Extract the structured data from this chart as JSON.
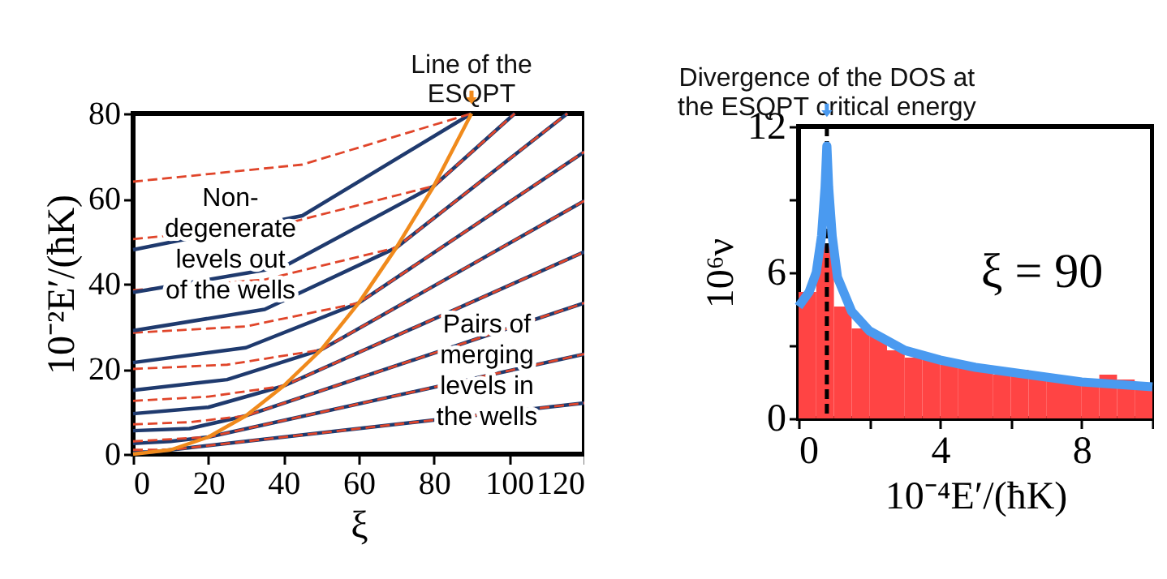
{
  "chart_data": [
    {
      "type": "line",
      "xlabel": "ξ",
      "ylabel": "10⁻²E′/(ħK)",
      "xlim": [
        0,
        120
      ],
      "ylim": [
        0,
        80
      ],
      "xticks": [
        0,
        20,
        40,
        60,
        80,
        100,
        120
      ],
      "yticks": [
        0,
        20,
        40,
        60,
        80
      ],
      "annotations": [
        {
          "text": "Line of the\nESQPT",
          "x": 90,
          "y": 80
        },
        "Non-\ndegenerate\nlevels out\nof the wells",
        "Pairs of\nmerging\nlevels in\nthe wells"
      ],
      "series": [
        {
          "color": "#1f3a6e",
          "line_style": "solid",
          "x": [
            0,
            5,
            10,
            120
          ],
          "values": [
            0.5,
            0.5,
            1,
            12
          ]
        },
        {
          "color": "#e0452a",
          "line_style": "dashed",
          "x": [
            0,
            5,
            10,
            120
          ],
          "values": [
            1,
            1,
            1,
            12
          ]
        },
        {
          "color": "#1f3a6e",
          "line_style": "solid",
          "x": [
            0,
            10,
            20,
            120
          ],
          "values": [
            2.5,
            3,
            4,
            23.5
          ]
        },
        {
          "color": "#e0452a",
          "line_style": "dashed",
          "x": [
            0,
            10,
            20,
            120
          ],
          "values": [
            3,
            3.5,
            4,
            23.5
          ]
        },
        {
          "color": "#1f3a6e",
          "line_style": "solid",
          "x": [
            0,
            15,
            30,
            120
          ],
          "values": [
            5.5,
            6,
            9,
            35.5
          ]
        },
        {
          "color": "#e0452a",
          "line_style": "dashed",
          "x": [
            0,
            15,
            30,
            120
          ],
          "values": [
            7,
            7.5,
            9,
            35.5
          ]
        },
        {
          "color": "#1f3a6e",
          "line_style": "solid",
          "x": [
            0,
            20,
            40,
            120
          ],
          "values": [
            9.5,
            11,
            16,
            47.5
          ]
        },
        {
          "color": "#e0452a",
          "line_style": "dashed",
          "x": [
            0,
            20,
            40,
            120
          ],
          "values": [
            12.5,
            13.5,
            16,
            47.5
          ]
        },
        {
          "color": "#1f3a6e",
          "line_style": "solid",
          "x": [
            0,
            25,
            50,
            120
          ],
          "values": [
            15,
            17.5,
            24.5,
            59.5
          ]
        },
        {
          "color": "#e0452a",
          "line_style": "dashed",
          "x": [
            0,
            25,
            50,
            120
          ],
          "values": [
            20,
            21,
            24.5,
            59.5
          ]
        },
        {
          "color": "#1f3a6e",
          "line_style": "solid",
          "x": [
            0,
            30,
            60,
            120
          ],
          "values": [
            21.5,
            25,
            35.5,
            71
          ]
        },
        {
          "color": "#e0452a",
          "line_style": "dashed",
          "x": [
            0,
            30,
            60,
            120
          ],
          "values": [
            28.5,
            30,
            35.5,
            71
          ]
        },
        {
          "color": "#1f3a6e",
          "line_style": "solid",
          "x": [
            0,
            35,
            70,
            115.5
          ],
          "values": [
            29,
            34,
            48.5,
            80
          ]
        },
        {
          "color": "#e0452a",
          "line_style": "dashed",
          "x": [
            0,
            35,
            70,
            115.5
          ],
          "values": [
            38.5,
            41,
            48.5,
            80
          ]
        },
        {
          "color": "#1f3a6e",
          "line_style": "solid",
          "x": [
            0,
            40,
            80,
            101.5
          ],
          "values": [
            38,
            44,
            63,
            80
          ]
        },
        {
          "color": "#e0452a",
          "line_style": "dashed",
          "x": [
            0,
            40,
            80,
            101.5
          ],
          "values": [
            50.5,
            54,
            63,
            80
          ]
        },
        {
          "color": "#1f3a6e",
          "line_style": "solid",
          "x": [
            0,
            45,
            90
          ],
          "values": [
            48,
            56,
            80
          ]
        },
        {
          "color": "#e0452a",
          "line_style": "dashed",
          "x": [
            0,
            45,
            90
          ],
          "values": [
            64,
            68,
            80
          ]
        },
        {
          "color": "#f08a1c",
          "line_style": "solid",
          "x": [
            0,
            10,
            20,
            30,
            40,
            50,
            60,
            70,
            80,
            90
          ],
          "values": [
            0,
            1,
            4,
            9,
            16,
            24.5,
            35.5,
            48.5,
            63,
            80
          ]
        }
      ]
    },
    {
      "type": "histogram",
      "xlabel": "10⁻⁴E′/(ħK)",
      "ylabel": "10⁶ν",
      "xlim": [
        0,
        10
      ],
      "ylim": [
        0,
        12
      ],
      "xticks": [
        0,
        {
          "value": 2,
          "label": null
        },
        4,
        {
          "value": 6,
          "label": null
        },
        8,
        {
          "value": 10,
          "label": null
        }
      ],
      "yticks": [
        0,
        {
          "value": 3,
          "label": null
        },
        6,
        {
          "value": 9,
          "label": null
        },
        12
      ],
      "annotations": [
        {
          "text": "Divergence of the DOS at\nthe ESQPT critical energy",
          "x": 0.8,
          "y": 12
        },
        "ξ = 90"
      ],
      "ref_lines": [
        {
          "axis": "x",
          "value": 0.8,
          "color": "#000000",
          "line_style": "dashed"
        }
      ],
      "series": [
        {
          "type": "histogram",
          "color": "#ff4444",
          "bins": [
            0,
            0.5,
            1,
            1.5,
            2,
            2.5,
            3,
            3.5,
            4,
            4.5,
            5,
            5.5,
            6,
            6.5,
            7,
            7.5,
            8,
            8.5,
            9,
            9.5,
            10
          ],
          "values": [
            5.2,
            7.2,
            4.6,
            3.7,
            3.4,
            2.8,
            2.5,
            2.4,
            2.2,
            2.1,
            2.0,
            1.8,
            2.0,
            1.8,
            1.7,
            1.6,
            1.5,
            1.8,
            1.6,
            1.4
          ]
        },
        {
          "type": "line",
          "color": "#4a9af0",
          "x": [
            0,
            0.3,
            0.5,
            0.65,
            0.75,
            0.8,
            0.85,
            0.95,
            1.1,
            1.5,
            2,
            3,
            4,
            5,
            6,
            7,
            8,
            9,
            10
          ],
          "values": [
            4.6,
            5.2,
            6.0,
            7.5,
            9.5,
            11.2,
            9.5,
            7.5,
            5.8,
            4.4,
            3.6,
            2.8,
            2.4,
            2.1,
            1.9,
            1.7,
            1.5,
            1.4,
            1.3
          ]
        }
      ]
    }
  ]
}
